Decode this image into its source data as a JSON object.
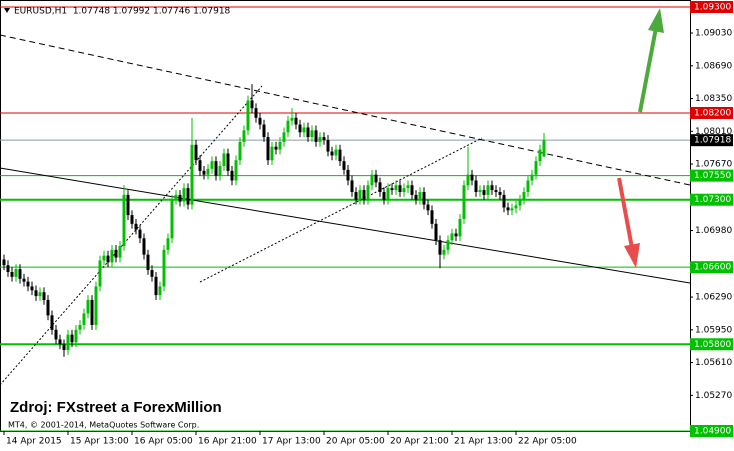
{
  "chart_data": {
    "type": "candlestick",
    "header": "EURUSD,H1  1.07748 1.07992 1.07746 1.07918",
    "watermark": "Zdroj: FXstreet a ForexMillion",
    "copyright": "MT4, © 2001-2014, MetaQuotes Software Corp.",
    "bull_color": "#00c000",
    "bear_color": "#000000",
    "ylim": [
      1.049,
      1.093
    ],
    "yticks": [
      {
        "value": 1.0903,
        "label": "1.09030"
      },
      {
        "value": 1.0869,
        "label": "1.08690"
      },
      {
        "value": 1.0835,
        "label": "1.08350"
      },
      {
        "value": 1.0801,
        "label": "1.08010"
      },
      {
        "value": 1.0767,
        "label": "1.07670"
      },
      {
        "value": 1.0698,
        "label": "1.06980"
      },
      {
        "value": 1.0629,
        "label": "1.06290"
      },
      {
        "value": 1.0595,
        "label": "1.05950"
      },
      {
        "value": 1.0561,
        "label": "1.05610"
      },
      {
        "value": 1.0527,
        "label": "1.05270"
      }
    ],
    "xticks": [
      {
        "value": 0,
        "label": "14 Apr 2015"
      },
      {
        "value": 16,
        "label": "15 Apr 13:00"
      },
      {
        "value": 32,
        "label": "16 Apr 05:00"
      },
      {
        "value": 48,
        "label": "16 Apr 21:00"
      },
      {
        "value": 64,
        "label": "17 Apr 13:00"
      },
      {
        "value": 80,
        "label": "20 Apr 05:00"
      },
      {
        "value": 96,
        "label": "20 Apr 21:00"
      },
      {
        "value": 112,
        "label": "21 Apr 13:00"
      },
      {
        "value": 128,
        "label": "22 Apr 05:00"
      }
    ],
    "levels": [
      {
        "value": 1.093,
        "label": "1.09300",
        "color": "#e00000",
        "box": "#e00000",
        "line_width": 1
      },
      {
        "value": 1.082,
        "label": "1.08200",
        "color": "#e00000",
        "box": "#e00000",
        "line_width": 1
      },
      {
        "value": 1.07918,
        "label": "1.07918",
        "color": "#8a9aa8",
        "box": "#000000",
        "line_width": 1
      },
      {
        "value": 1.0755,
        "label": "1.07550",
        "color": "#00c000",
        "box": "#00c000",
        "line_width": 1
      },
      {
        "value": 1.073,
        "label": "1.07300",
        "color": "#00c000",
        "box": "#00c000",
        "line_width": 2
      },
      {
        "value": 1.066,
        "label": "1.06600",
        "color": "#00c000",
        "box": "#00c000",
        "line_width": 1
      },
      {
        "value": 1.058,
        "label": "1.05800",
        "color": "#00c000",
        "box": "#00c000",
        "line_width": 2
      },
      {
        "value": 1.049,
        "label": "1.04900",
        "color": "#00c000",
        "box": "#00c000",
        "line_width": 1
      }
    ],
    "open": [
      1.0668,
      1.0662,
      1.0655,
      1.065,
      1.0658,
      1.0648,
      1.0645,
      1.064,
      1.0636,
      1.063,
      1.0634,
      1.0626,
      1.061,
      1.0595,
      1.0585,
      1.058,
      1.0574,
      1.059,
      1.0582,
      1.0595,
      1.06,
      1.0612,
      1.0626,
      1.06,
      1.064,
      1.0667,
      1.0672,
      1.0665,
      1.0678,
      1.067,
      1.0682,
      1.0735,
      1.0714,
      1.0705,
      1.0699,
      1.069,
      1.0673,
      1.0657,
      1.065,
      1.0631,
      1.064,
      1.0678,
      1.069,
      1.073,
      1.0735,
      1.0728,
      1.0742,
      1.0725,
      1.0787,
      1.0771,
      1.076,
      1.0756,
      1.0762,
      1.077,
      1.0755,
      1.0765,
      1.0778,
      1.076,
      1.075,
      1.0771,
      1.079,
      1.0802,
      1.0833,
      1.0825,
      1.0815,
      1.0808,
      1.0795,
      1.0771,
      1.0785,
      1.0782,
      1.079,
      1.08,
      1.0812,
      1.0815,
      1.0808,
      1.08,
      1.0805,
      1.0795,
      1.0802,
      1.079,
      1.0795,
      1.0792,
      1.078,
      1.0776,
      1.0782,
      1.077,
      1.0761,
      1.075,
      1.0738,
      1.073,
      1.074,
      1.073,
      1.0745,
      1.0756,
      1.0748,
      1.0738,
      1.073,
      1.0742,
      1.074,
      1.0745,
      1.0738,
      1.0742,
      1.0745,
      1.0735,
      1.073,
      1.0738,
      1.0725,
      1.0719,
      1.0705,
      1.0688,
      1.0673,
      1.0678,
      1.0688,
      1.0695,
      1.0692,
      1.071,
      1.0745,
      1.0756,
      1.075,
      1.0738,
      1.074,
      1.0735,
      1.0745,
      1.074,
      1.0738,
      1.0735,
      1.0722,
      1.0719,
      1.0721,
      1.0724,
      1.073,
      1.0738,
      1.075,
      1.0756,
      1.077,
      1.07748
    ],
    "high": [
      1.0673,
      1.0667,
      1.066,
      1.0663,
      1.0663,
      1.0653,
      1.065,
      1.0645,
      1.0641,
      1.0639,
      1.0639,
      1.0631,
      1.0615,
      1.06,
      1.059,
      1.0585,
      1.0595,
      1.0595,
      1.06,
      1.0605,
      1.0617,
      1.0631,
      1.0631,
      1.0645,
      1.0672,
      1.0677,
      1.0677,
      1.0683,
      1.0683,
      1.0687,
      1.0745,
      1.074,
      1.0719,
      1.071,
      1.0704,
      1.0695,
      1.0678,
      1.0662,
      1.0655,
      1.0645,
      1.0683,
      1.0695,
      1.0735,
      1.074,
      1.074,
      1.0747,
      1.0747,
      1.0815,
      1.0792,
      1.0776,
      1.0765,
      1.0767,
      1.0775,
      1.0775,
      1.077,
      1.0783,
      1.0783,
      1.0765,
      1.0776,
      1.0795,
      1.0807,
      1.0838,
      1.085,
      1.083,
      1.082,
      1.0813,
      1.08,
      1.079,
      1.079,
      1.0795,
      1.0805,
      1.0817,
      1.0825,
      1.082,
      1.0813,
      1.081,
      1.081,
      1.0807,
      1.0807,
      1.08,
      1.08,
      1.0797,
      1.0785,
      1.0787,
      1.0787,
      1.0775,
      1.0766,
      1.0755,
      1.0743,
      1.0745,
      1.0745,
      1.075,
      1.0761,
      1.0761,
      1.0753,
      1.0743,
      1.0747,
      1.0747,
      1.075,
      1.075,
      1.0747,
      1.075,
      1.075,
      1.074,
      1.0743,
      1.0743,
      1.073,
      1.0724,
      1.071,
      1.0693,
      1.0683,
      1.0693,
      1.07,
      1.07,
      1.0715,
      1.075,
      1.0785,
      1.0761,
      1.0755,
      1.0745,
      1.0745,
      1.075,
      1.075,
      1.0745,
      1.0743,
      1.074,
      1.0727,
      1.0726,
      1.0729,
      1.0735,
      1.0743,
      1.0755,
      1.0761,
      1.0775,
      1.0787,
      1.07992
    ],
    "low": [
      1.0657,
      1.065,
      1.0645,
      1.0645,
      1.0643,
      1.064,
      1.0635,
      1.0631,
      1.0625,
      1.0625,
      1.0621,
      1.0605,
      1.059,
      1.058,
      1.0575,
      1.0567,
      1.0569,
      1.0577,
      1.0577,
      1.059,
      1.0595,
      1.0607,
      1.0595,
      1.0595,
      1.0635,
      1.0662,
      1.066,
      1.066,
      1.0665,
      1.0665,
      1.0677,
      1.0709,
      1.07,
      1.0694,
      1.0685,
      1.0668,
      1.0652,
      1.0645,
      1.0626,
      1.0626,
      1.0635,
      1.0673,
      1.0685,
      1.0725,
      1.0723,
      1.0723,
      1.072,
      1.072,
      1.0766,
      1.0755,
      1.0751,
      1.0751,
      1.0757,
      1.075,
      1.075,
      1.076,
      1.0755,
      1.0745,
      1.0745,
      1.0766,
      1.0785,
      1.0797,
      1.082,
      1.081,
      1.0803,
      1.079,
      1.0766,
      1.0766,
      1.0777,
      1.0777,
      1.0785,
      1.0795,
      1.0807,
      1.0803,
      1.0795,
      1.0795,
      1.079,
      1.079,
      1.0785,
      1.0785,
      1.0787,
      1.0775,
      1.0771,
      1.0771,
      1.0765,
      1.0756,
      1.0745,
      1.0733,
      1.0725,
      1.0725,
      1.0725,
      1.0725,
      1.074,
      1.0743,
      1.0733,
      1.0725,
      1.0725,
      1.0735,
      1.0735,
      1.0733,
      1.0733,
      1.0737,
      1.073,
      1.0725,
      1.0725,
      1.072,
      1.0714,
      1.07,
      1.0683,
      1.0659,
      1.0668,
      1.0673,
      1.0683,
      1.0687,
      1.0687,
      1.0705,
      1.074,
      1.0745,
      1.0733,
      1.0733,
      1.073,
      1.073,
      1.0735,
      1.0733,
      1.073,
      1.0717,
      1.0714,
      1.0714,
      1.0716,
      1.0719,
      1.0725,
      1.0733,
      1.0745,
      1.0751,
      1.0765,
      1.07746
    ],
    "close": [
      1.0662,
      1.0655,
      1.065,
      1.0658,
      1.0648,
      1.0645,
      1.064,
      1.0636,
      1.063,
      1.0634,
      1.0626,
      1.061,
      1.0595,
      1.0585,
      1.058,
      1.0574,
      1.059,
      1.0582,
      1.0595,
      1.06,
      1.0612,
      1.0626,
      1.06,
      1.064,
      1.0667,
      1.0672,
      1.0665,
      1.0678,
      1.067,
      1.0682,
      1.0735,
      1.0714,
      1.0705,
      1.0699,
      1.069,
      1.0673,
      1.0657,
      1.065,
      1.0631,
      1.064,
      1.0678,
      1.069,
      1.073,
      1.0735,
      1.0728,
      1.0742,
      1.0725,
      1.0787,
      1.0771,
      1.076,
      1.0756,
      1.0762,
      1.077,
      1.0755,
      1.0765,
      1.0778,
      1.076,
      1.075,
      1.0771,
      1.079,
      1.0802,
      1.0833,
      1.0825,
      1.0815,
      1.0808,
      1.0795,
      1.0771,
      1.0785,
      1.0782,
      1.079,
      1.08,
      1.0812,
      1.0815,
      1.0808,
      1.08,
      1.0805,
      1.0795,
      1.0802,
      1.079,
      1.0795,
      1.0792,
      1.078,
      1.0776,
      1.0782,
      1.077,
      1.0761,
      1.075,
      1.0738,
      1.073,
      1.074,
      1.073,
      1.0745,
      1.0756,
      1.0748,
      1.0738,
      1.073,
      1.0742,
      1.074,
      1.0745,
      1.0738,
      1.0742,
      1.0745,
      1.0735,
      1.073,
      1.0738,
      1.0725,
      1.0719,
      1.0705,
      1.0688,
      1.0673,
      1.0678,
      1.0688,
      1.0695,
      1.0692,
      1.071,
      1.0745,
      1.0756,
      1.075,
      1.0738,
      1.074,
      1.0735,
      1.0745,
      1.074,
      1.0738,
      1.0735,
      1.0722,
      1.0719,
      1.0721,
      1.0724,
      1.073,
      1.0738,
      1.075,
      1.0756,
      1.077,
      1.0782,
      1.07918
    ]
  }
}
